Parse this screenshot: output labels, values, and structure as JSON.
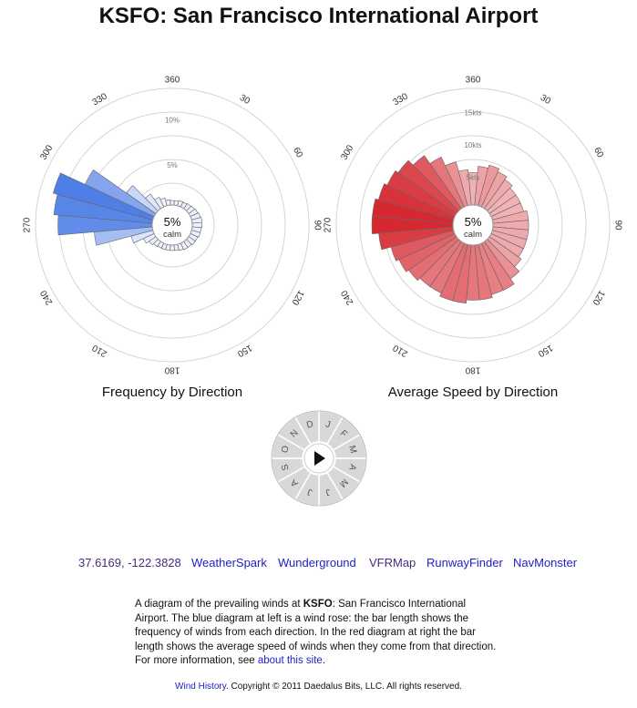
{
  "page": {
    "title": "KSFO: San Francisco International Airport"
  },
  "chart_data": [
    {
      "type": "polar-bar",
      "name": "frequency-rose",
      "title": "Frequency by Direction",
      "center_label": "5%",
      "center_sublabel": "calm",
      "ring_labels": [
        "5%",
        "10%"
      ],
      "direction_labels": [
        "360",
        "30",
        "60",
        "90",
        "120",
        "150",
        "180",
        "210",
        "240",
        "270",
        "300",
        "330"
      ],
      "directions_deg": [
        0,
        10,
        20,
        30,
        40,
        50,
        60,
        70,
        80,
        90,
        100,
        110,
        120,
        130,
        140,
        150,
        160,
        170,
        180,
        190,
        200,
        210,
        220,
        230,
        240,
        250,
        260,
        270,
        280,
        290,
        300,
        310,
        320,
        330,
        340,
        350
      ],
      "values_percent": [
        0.5,
        0.5,
        0.6,
        0.6,
        0.7,
        0.8,
        0.9,
        1.0,
        1.1,
        1.1,
        1.0,
        1.0,
        0.9,
        0.9,
        0.8,
        0.8,
        0.7,
        0.6,
        0.6,
        0.6,
        0.6,
        0.6,
        0.7,
        0.9,
        1.3,
        2.5,
        6.5,
        10.5,
        11.0,
        11.5,
        8.5,
        4.0,
        2.0,
        1.2,
        0.9,
        0.6
      ],
      "rmax": 13,
      "color": "#4f7fe6"
    },
    {
      "type": "polar-bar",
      "name": "speed-rose",
      "title": "Average Speed by Direction",
      "center_label": "5%",
      "center_sublabel": "calm",
      "ring_labels": [
        "5kts",
        "10kts",
        "15kts"
      ],
      "direction_labels": [
        "360",
        "30",
        "60",
        "90",
        "120",
        "150",
        "180",
        "210",
        "240",
        "270",
        "300",
        "330"
      ],
      "directions_deg": [
        0,
        10,
        20,
        30,
        40,
        50,
        60,
        70,
        80,
        90,
        100,
        110,
        120,
        130,
        140,
        150,
        160,
        170,
        180,
        190,
        200,
        210,
        220,
        230,
        240,
        250,
        260,
        270,
        280,
        290,
        300,
        310,
        320,
        330,
        340,
        350
      ],
      "values_kts": [
        5.0,
        6.0,
        6.5,
        6.0,
        5.5,
        5.0,
        5.0,
        5.0,
        5.5,
        5.5,
        5.5,
        5.5,
        5.5,
        6.0,
        7.0,
        8.0,
        8.0,
        8.5,
        8.5,
        9.0,
        9.0,
        8.5,
        8.5,
        9.0,
        9.5,
        10.0,
        11.5,
        12.5,
        12.5,
        12.0,
        11.5,
        11.0,
        10.0,
        8.5,
        7.0,
        5.5
      ],
      "rmax": 18,
      "color": "#d62830"
    }
  ],
  "month_dial": {
    "months": [
      "J",
      "F",
      "M",
      "A",
      "M",
      "J",
      "J",
      "A",
      "S",
      "O",
      "N",
      "D"
    ],
    "play_icon": "play-icon"
  },
  "links": {
    "coordinates": "37.6169, -122.3828",
    "weatherspark": "WeatherSpark",
    "wunderground": "Wunderground",
    "vfrmap": "VFRMap",
    "runwayfinder": "RunwayFinder",
    "navmonster": "NavMonster"
  },
  "description": {
    "intro": "A diagram of the prevailing winds at ",
    "code": "KSFO",
    "body": ": San Francisco International Airport. The blue diagram at left is a wind rose: the bar length shows the frequency of winds from each direction. In the red diagram at right the bar length shows the average speed of winds when they come from that direction. For more information, see ",
    "link": "about this site",
    "end": "."
  },
  "footer": {
    "link": "Wind History",
    "text": ". Copyright © 2011 Daedalus Bits, LLC. All rights reserved."
  }
}
